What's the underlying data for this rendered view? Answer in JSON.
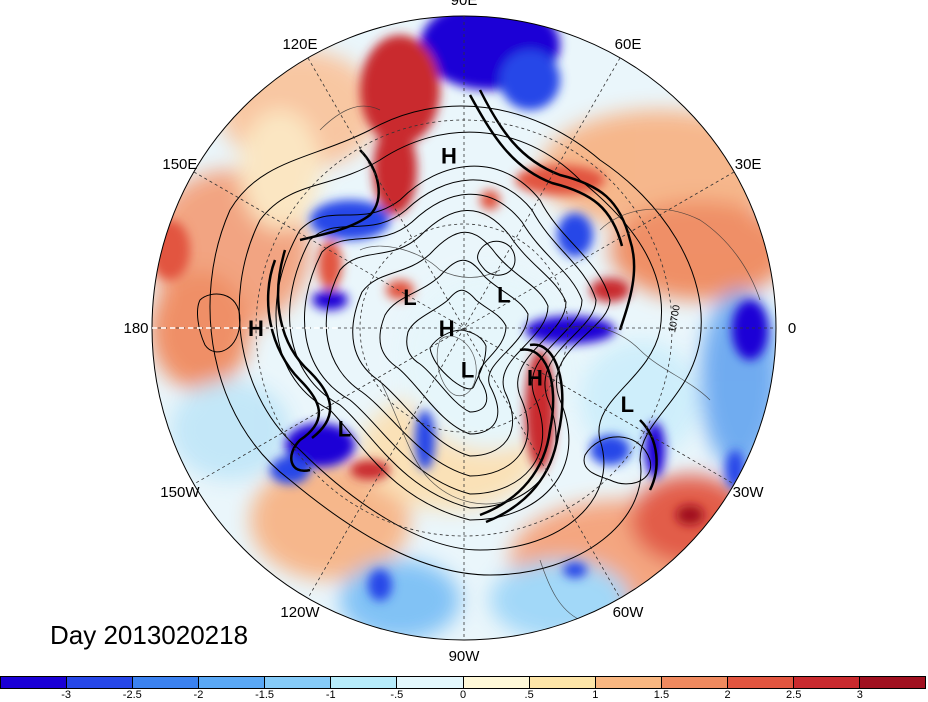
{
  "figure": {
    "day_label": "Day 2013020218",
    "contour_annotation": "10700"
  },
  "longitude_labels": [
    "90E",
    "60E",
    "30E",
    "0",
    "30W",
    "60W",
    "90W",
    "120W",
    "150W",
    "180",
    "150E",
    "120E"
  ],
  "pressure_centers": [
    {
      "label": "H",
      "lon": 95,
      "lat": 40
    },
    {
      "label": "L",
      "lon": 150,
      "lat": 72
    },
    {
      "label": "H",
      "lon": 180,
      "lat": 85
    },
    {
      "label": "L",
      "lon": 40,
      "lat": 75
    },
    {
      "label": "H",
      "lon": 180,
      "lat": 30
    },
    {
      "label": "L",
      "lon": -85,
      "lat": 78
    },
    {
      "label": "H",
      "lon": -35,
      "lat": 65
    },
    {
      "label": "L",
      "lon": -140,
      "lat": 45
    },
    {
      "label": "L",
      "lon": -25,
      "lat": 38
    }
  ],
  "colorbar": {
    "colors": [
      "#1a00d6",
      "#2647e8",
      "#3b82f0",
      "#5aa8f5",
      "#86cbf8",
      "#b7ecfb",
      "#e3f7fc",
      "#fef8d8",
      "#fde5a8",
      "#f9b781",
      "#f08a5f",
      "#e2553f",
      "#c92a2e",
      "#a0101f"
    ],
    "tick_labels": [
      "-3",
      "-2.5",
      "-2",
      "-1.5",
      "-1",
      "-.5",
      "0",
      ".5",
      "1",
      "1.5",
      "2",
      "2.5",
      "3"
    ]
  }
}
